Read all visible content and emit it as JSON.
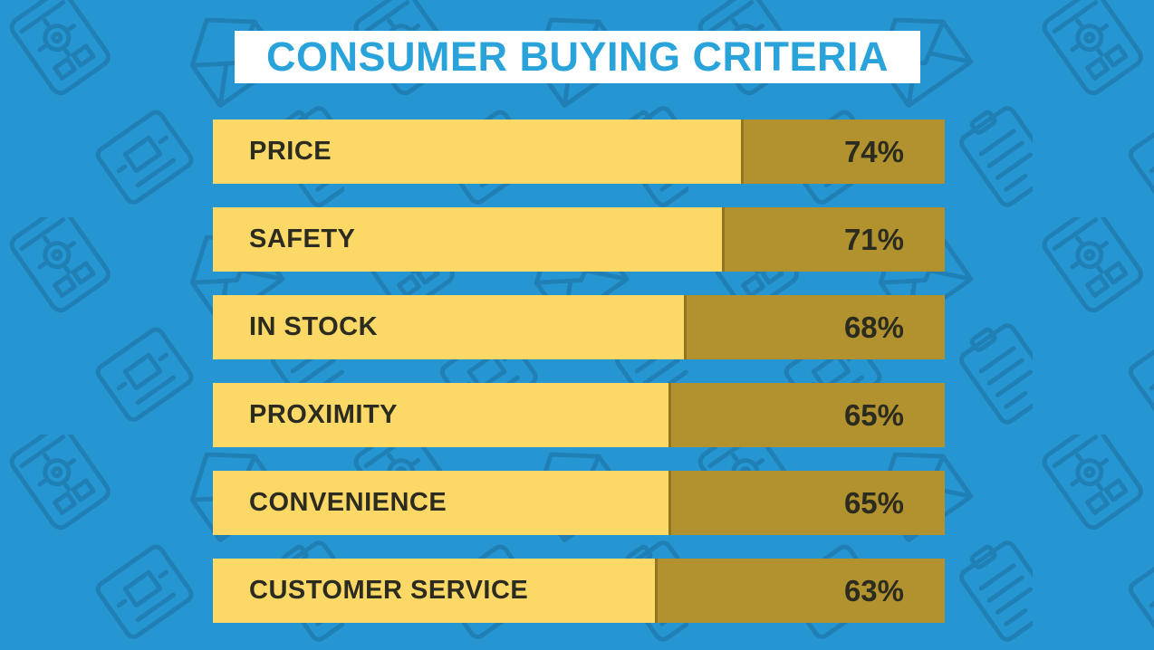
{
  "chart_data": {
    "type": "bar",
    "orientation": "horizontal",
    "title": "CONSUMER BUYING CRITERIA",
    "categories": [
      "PRICE",
      "SAFETY",
      "IN STOCK",
      "PROXIMITY",
      "CONVENIENCE",
      "CUSTOMER SERVICE"
    ],
    "values": [
      74,
      71,
      68,
      65,
      65,
      63
    ],
    "value_labels": [
      "74%",
      "71%",
      "68%",
      "65%",
      "65%",
      "63%"
    ],
    "value_suffix": "%",
    "xlim": [
      0,
      100
    ],
    "grid": false,
    "legend": "none",
    "bar_fill_percents": [
      72.2,
      69.5,
      64.3,
      62.3,
      62.2,
      60.4
    ]
  },
  "style": {
    "background_blue": "#2596D2",
    "pattern_icon_blue": "#1E7CB0",
    "bar_light_yellow": "#FCD867",
    "bar_dark_gold": "#B1922F",
    "title_text_blue": "#2AA3DB",
    "title_box_white": "#FFFFFF",
    "bar_text_dark": "#2B2B1F"
  },
  "background": {
    "pattern_icons": [
      "tablet-gear-icon",
      "open-envelope-icon",
      "paid-receipt-icon",
      "clipboard-list-icon"
    ],
    "pattern_rotation_deg": -35
  }
}
